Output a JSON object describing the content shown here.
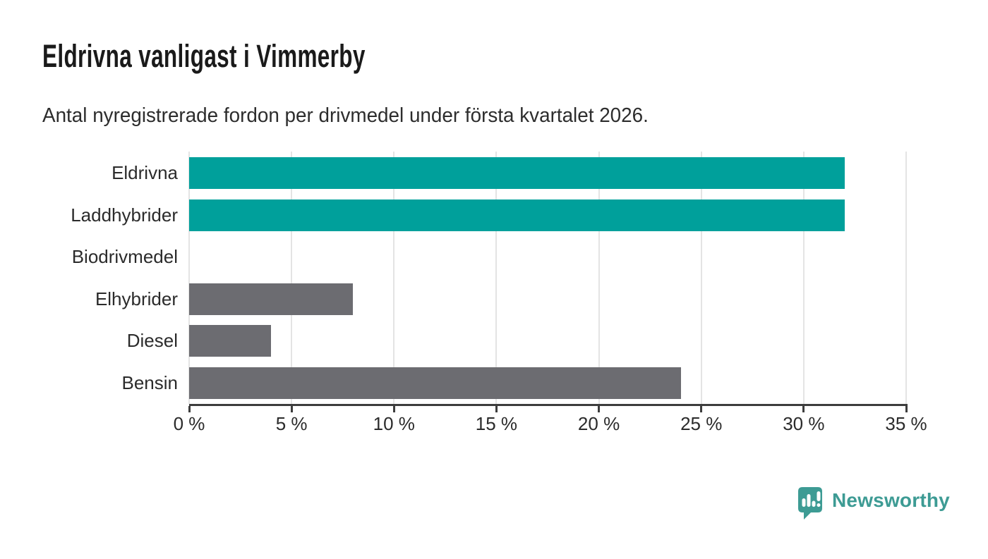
{
  "title": "Eldrivna vanligast i Vimmerby",
  "subtitle": "Antal nyregistrerade fordon per drivmedel under första kvartalet 2026.",
  "chart_data": {
    "type": "bar",
    "orientation": "horizontal",
    "title": "Eldrivna vanligast i Vimmerby",
    "subtitle": "Antal nyregistrerade fordon per drivmedel under första kvartalet 2026.",
    "categories": [
      "Eldrivna",
      "Laddhybrider",
      "Biodrivmedel",
      "Elhybrider",
      "Diesel",
      "Bensin"
    ],
    "values": [
      32,
      32,
      0,
      8,
      4,
      24
    ],
    "unit": "%",
    "xlabel": "",
    "ylabel": "",
    "xlim": [
      0,
      35
    ],
    "xticks": [
      0,
      5,
      10,
      15,
      20,
      25,
      30,
      35
    ],
    "xtick_labels": [
      "0 %",
      "5 %",
      "10 %",
      "15 %",
      "20 %",
      "25 %",
      "30 %",
      "35 %"
    ],
    "grid": true,
    "legend": "none",
    "bar_colors": [
      "#00a09b",
      "#00a09b",
      "#6c6c71",
      "#6c6c71",
      "#6c6c71",
      "#6c6c71"
    ]
  },
  "branding": {
    "logo_text": "Newsworthy",
    "logo_color": "#3d9b94",
    "logo_icon": "speech-bubble-bar-chart-exclamation"
  },
  "colors": {
    "highlight_bar": "#00a09b",
    "default_bar": "#6c6c71",
    "axis": "#3d3d3d",
    "gridline": "#e4e4e4",
    "text": "#2b2b2b",
    "title": "#1a1a1a",
    "background": "#ffffff"
  }
}
